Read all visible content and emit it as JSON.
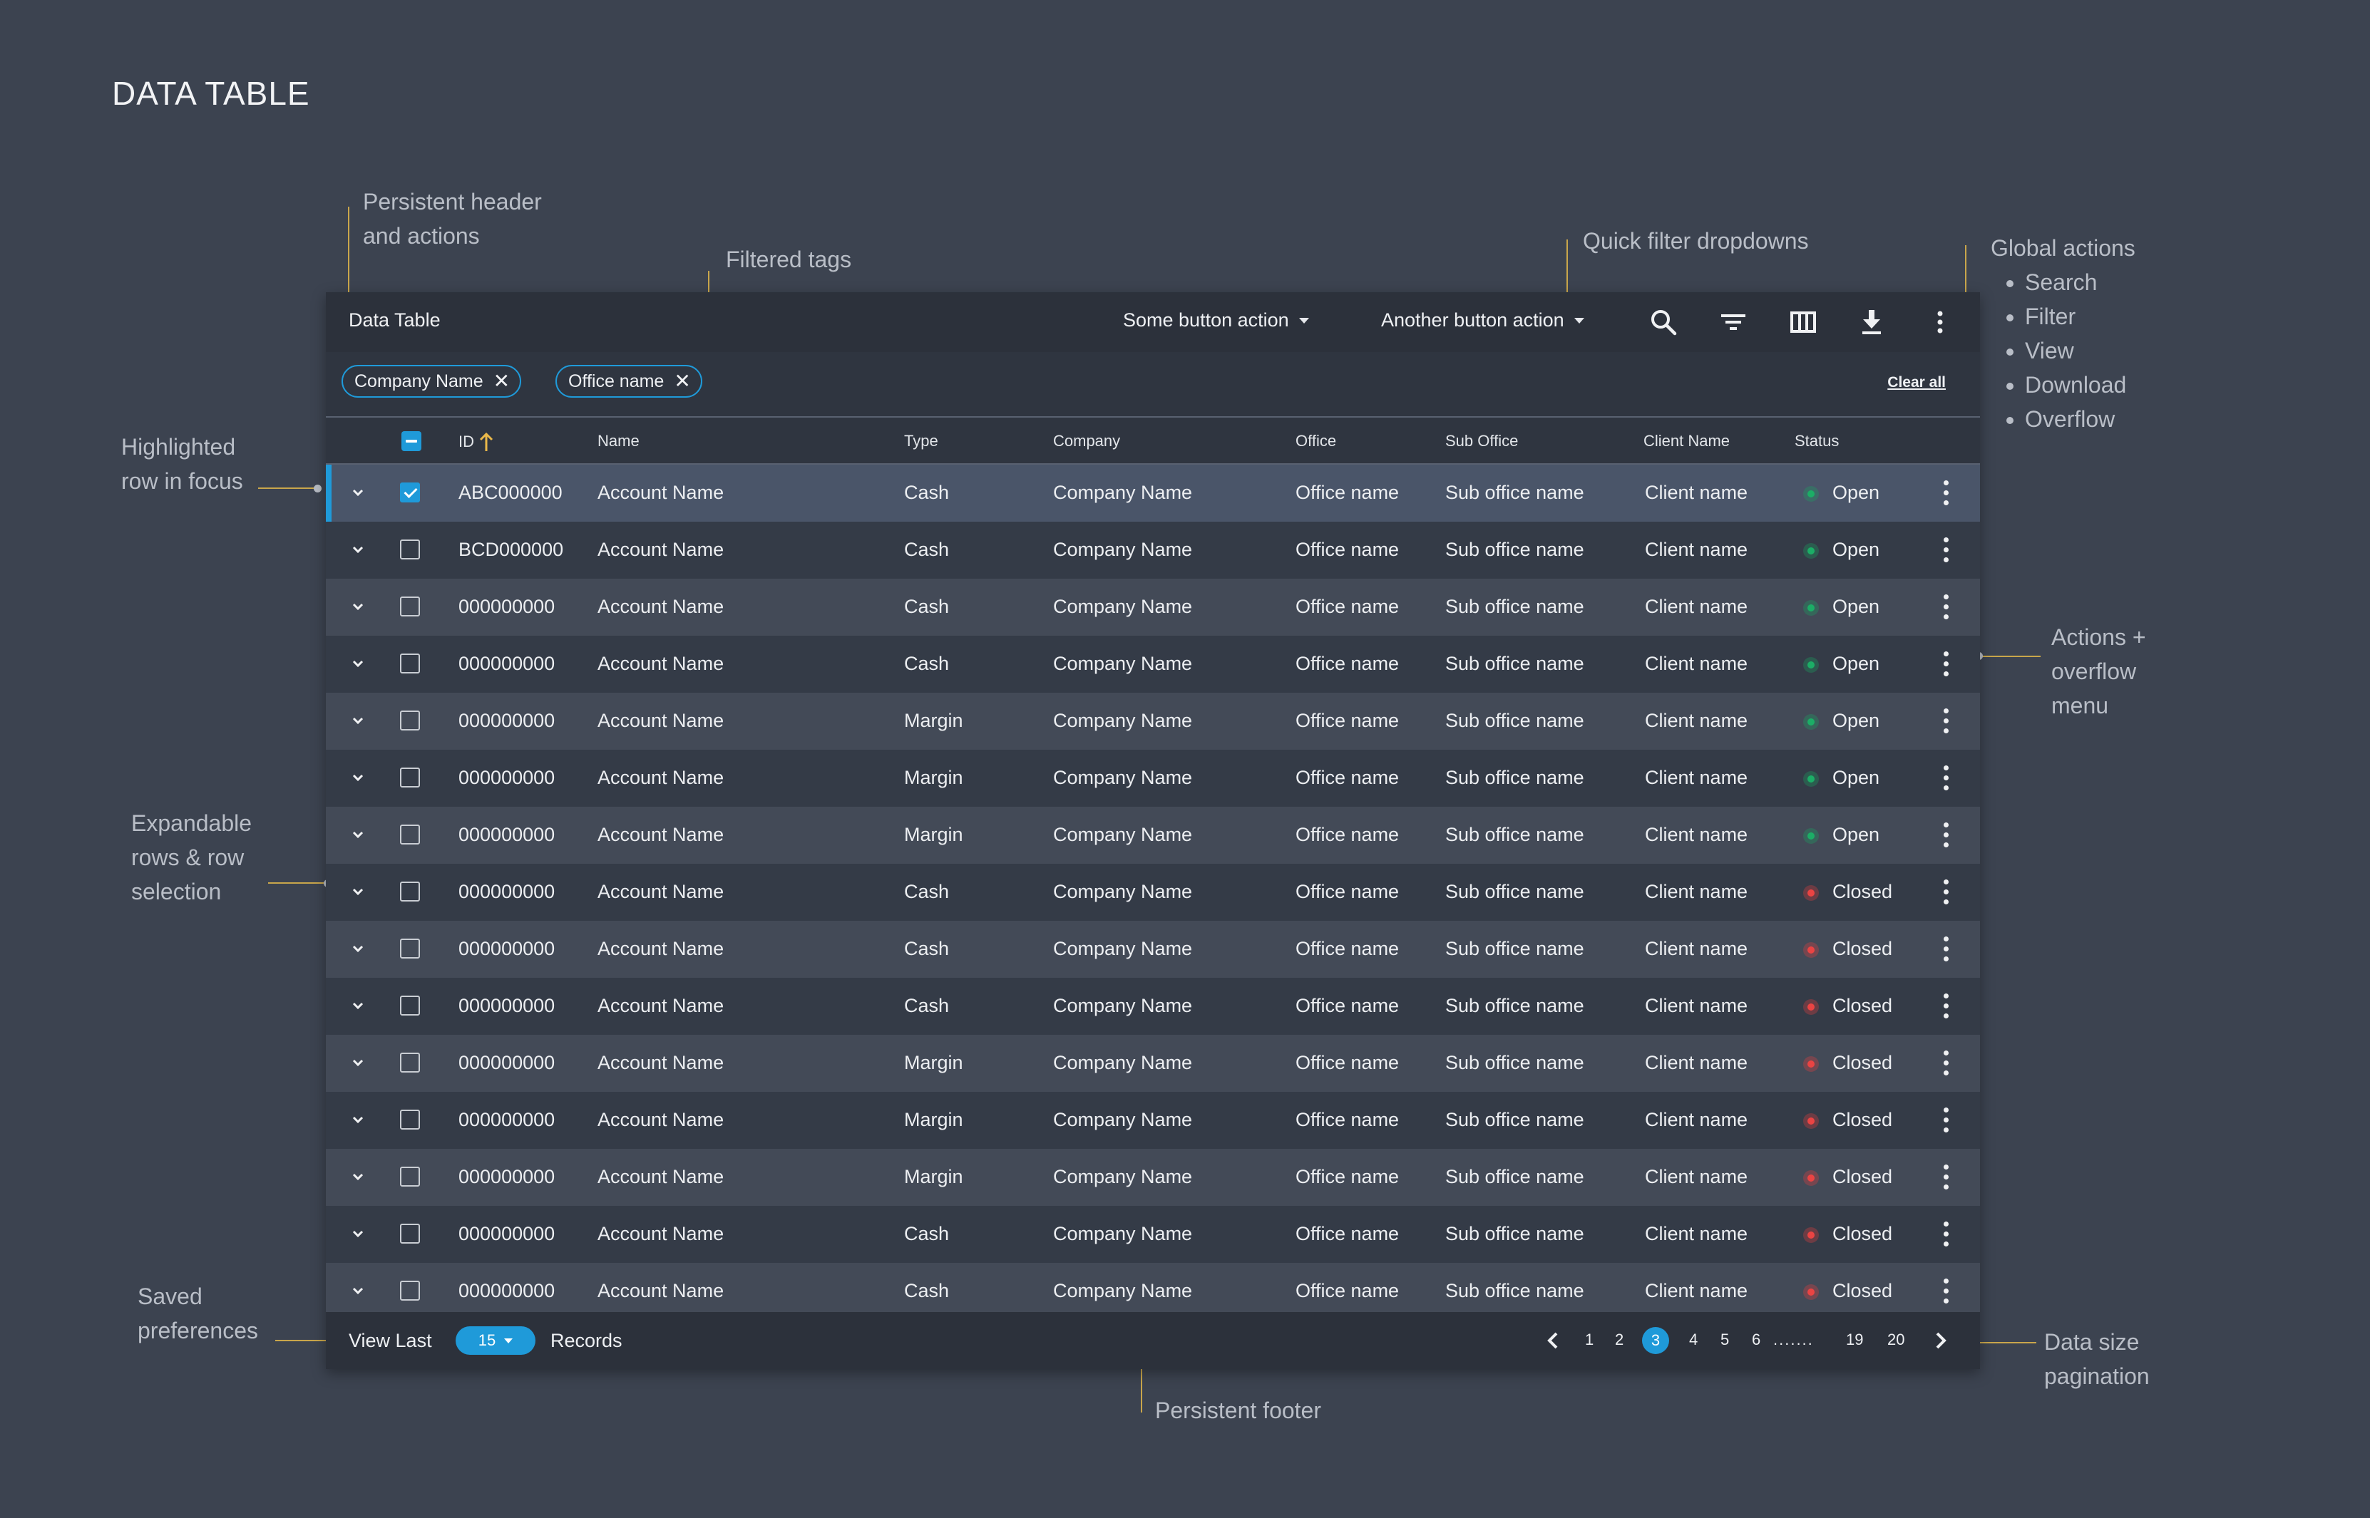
{
  "page_title": "DATA TABLE",
  "annotations": {
    "persistent_header": [
      "Persistent header",
      "and actions"
    ],
    "filtered_tags": "Filtered tags",
    "quick_filter": "Quick filter dropdowns",
    "global_actions": {
      "title": "Global actions",
      "items": [
        "Search",
        "Filter",
        "View",
        "Download",
        "Overflow"
      ]
    },
    "highlighted_row": [
      "Highlighted",
      "row in focus"
    ],
    "actions_overflow": [
      "Actions +",
      "overflow",
      "menu"
    ],
    "expandable_rows": [
      "Expandable",
      "rows & row",
      "selection"
    ],
    "saved_preferences": [
      "Saved",
      "preferences"
    ],
    "persistent_footer": "Persistent footer",
    "data_size": [
      "Data size",
      "pagination"
    ]
  },
  "toolbar": {
    "title": "Data Table",
    "button1": "Some button action",
    "button2": "Another button action",
    "icons": [
      "search-icon",
      "filter-icon",
      "view-columns-icon",
      "download-icon",
      "overflow-icon"
    ]
  },
  "filters": {
    "tags": [
      "Company Name",
      "Office name"
    ],
    "clear_all": "Clear all"
  },
  "columns": [
    "ID",
    "Name",
    "Type",
    "Company",
    "Office",
    "Sub Office",
    "Client Name",
    "Status"
  ],
  "rows": [
    {
      "id": "ABC000000",
      "name": "Account Name",
      "type": "Cash",
      "company": "Company Name",
      "office": "Office name",
      "sub_office": "Sub office name",
      "client": "Client name",
      "status": "Open",
      "checked": true,
      "focus": true
    },
    {
      "id": "BCD000000",
      "name": "Account Name",
      "type": "Cash",
      "company": "Company Name",
      "office": "Office name",
      "sub_office": "Sub office name",
      "client": "Client name",
      "status": "Open"
    },
    {
      "id": "000000000",
      "name": "Account Name",
      "type": "Cash",
      "company": "Company Name",
      "office": "Office name",
      "sub_office": "Sub office name",
      "client": "Client name",
      "status": "Open"
    },
    {
      "id": "000000000",
      "name": "Account Name",
      "type": "Cash",
      "company": "Company Name",
      "office": "Office name",
      "sub_office": "Sub office name",
      "client": "Client name",
      "status": "Open"
    },
    {
      "id": "000000000",
      "name": "Account Name",
      "type": "Margin",
      "company": "Company Name",
      "office": "Office name",
      "sub_office": "Sub office name",
      "client": "Client name",
      "status": "Open"
    },
    {
      "id": "000000000",
      "name": "Account Name",
      "type": "Margin",
      "company": "Company Name",
      "office": "Office name",
      "sub_office": "Sub office name",
      "client": "Client name",
      "status": "Open"
    },
    {
      "id": "000000000",
      "name": "Account Name",
      "type": "Margin",
      "company": "Company Name",
      "office": "Office name",
      "sub_office": "Sub office name",
      "client": "Client name",
      "status": "Open"
    },
    {
      "id": "000000000",
      "name": "Account Name",
      "type": "Cash",
      "company": "Company Name",
      "office": "Office name",
      "sub_office": "Sub office name",
      "client": "Client name",
      "status": "Closed"
    },
    {
      "id": "000000000",
      "name": "Account Name",
      "type": "Cash",
      "company": "Company Name",
      "office": "Office name",
      "sub_office": "Sub office name",
      "client": "Client name",
      "status": "Closed"
    },
    {
      "id": "000000000",
      "name": "Account Name",
      "type": "Cash",
      "company": "Company Name",
      "office": "Office name",
      "sub_office": "Sub office name",
      "client": "Client name",
      "status": "Closed"
    },
    {
      "id": "000000000",
      "name": "Account Name",
      "type": "Margin",
      "company": "Company Name",
      "office": "Office name",
      "sub_office": "Sub office name",
      "client": "Client name",
      "status": "Closed"
    },
    {
      "id": "000000000",
      "name": "Account Name",
      "type": "Margin",
      "company": "Company Name",
      "office": "Office name",
      "sub_office": "Sub office name",
      "client": "Client name",
      "status": "Closed"
    },
    {
      "id": "000000000",
      "name": "Account Name",
      "type": "Margin",
      "company": "Company Name",
      "office": "Office name",
      "sub_office": "Sub office name",
      "client": "Client name",
      "status": "Closed"
    },
    {
      "id": "000000000",
      "name": "Account Name",
      "type": "Cash",
      "company": "Company Name",
      "office": "Office name",
      "sub_office": "Sub office name",
      "client": "Client name",
      "status": "Closed"
    },
    {
      "id": "000000000",
      "name": "Account Name",
      "type": "Cash",
      "company": "Company Name",
      "office": "Office name",
      "sub_office": "Sub office name",
      "client": "Client name",
      "status": "Closed"
    }
  ],
  "status_colors": {
    "Open": "#1aa35f",
    "Closed": "#e0403f"
  },
  "footer": {
    "view_last": "View Last",
    "page_size": "15",
    "records": "Records",
    "pages": [
      "1",
      "2",
      "3",
      "4",
      "5",
      "6",
      ".......",
      "19",
      "20"
    ],
    "active_page": "3"
  }
}
